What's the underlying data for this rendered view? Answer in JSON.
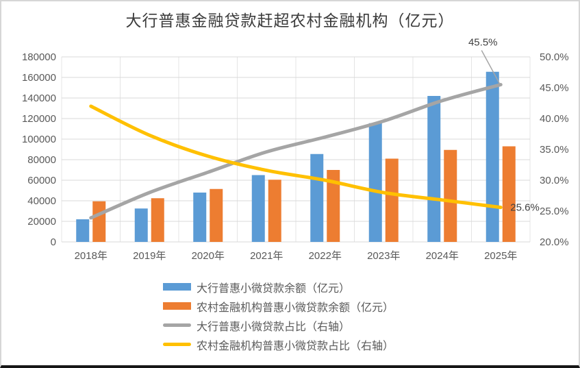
{
  "chart_data": {
    "type": "bar+line combo",
    "title": "大行普惠金融贷款赶超农村金融机构（亿元）",
    "categories": [
      "2018年",
      "2019年",
      "2020年",
      "2021年",
      "2022年",
      "2023年",
      "2024年",
      "2025年"
    ],
    "series": [
      {
        "key": "big-bank-balance",
        "name": "大行普惠小微贷款余额（亿元）",
        "type": "bar",
        "axis": "left",
        "color": "#5B9BD5",
        "values": [
          22000,
          32500,
          48000,
          65000,
          85500,
          115500,
          142000,
          165500
        ]
      },
      {
        "key": "rural-balance",
        "name": "农村金融机构普惠小微贷款余额（亿元）",
        "type": "bar",
        "axis": "left",
        "color": "#ED7D31",
        "values": [
          39500,
          42500,
          51500,
          60500,
          70000,
          81000,
          89500,
          93000
        ]
      },
      {
        "key": "big-bank-share",
        "name": "大行普惠小微贷款占比（右轴）",
        "type": "line",
        "axis": "right",
        "color": "#A5A5A5",
        "values": [
          23.9,
          28.0,
          31.3,
          34.6,
          37.0,
          39.6,
          42.9,
          45.5
        ]
      },
      {
        "key": "rural-share",
        "name": "农村金融机构普惠小微贷款占比（右轴）",
        "type": "line",
        "axis": "right",
        "color": "#FFC000",
        "values": [
          42.0,
          37.3,
          33.9,
          31.6,
          30.0,
          28.0,
          26.8,
          25.6
        ]
      }
    ],
    "left_axis": {
      "min": 0,
      "max": 180000,
      "step": 20000
    },
    "right_axis": {
      "min": 20,
      "max": 50,
      "step": 5,
      "suffix": "%"
    },
    "annotations": [
      {
        "series_key": "big-bank-share",
        "point": 7,
        "text": "45.5%",
        "placement": "callout-above",
        "leader": true
      },
      {
        "series_key": "rural-share",
        "point": 7,
        "text": "25.6%",
        "placement": "right",
        "leader": false
      }
    ],
    "legend_position": "bottom",
    "grid": true,
    "colors": {
      "gridline": "#d9d9d9",
      "vertical_gridline": "#e4e4e4",
      "axis_text": "#595959",
      "title_text": "#3b3b3b",
      "annotation_text": "#404040",
      "leader_line": "#a6a6a6"
    }
  }
}
